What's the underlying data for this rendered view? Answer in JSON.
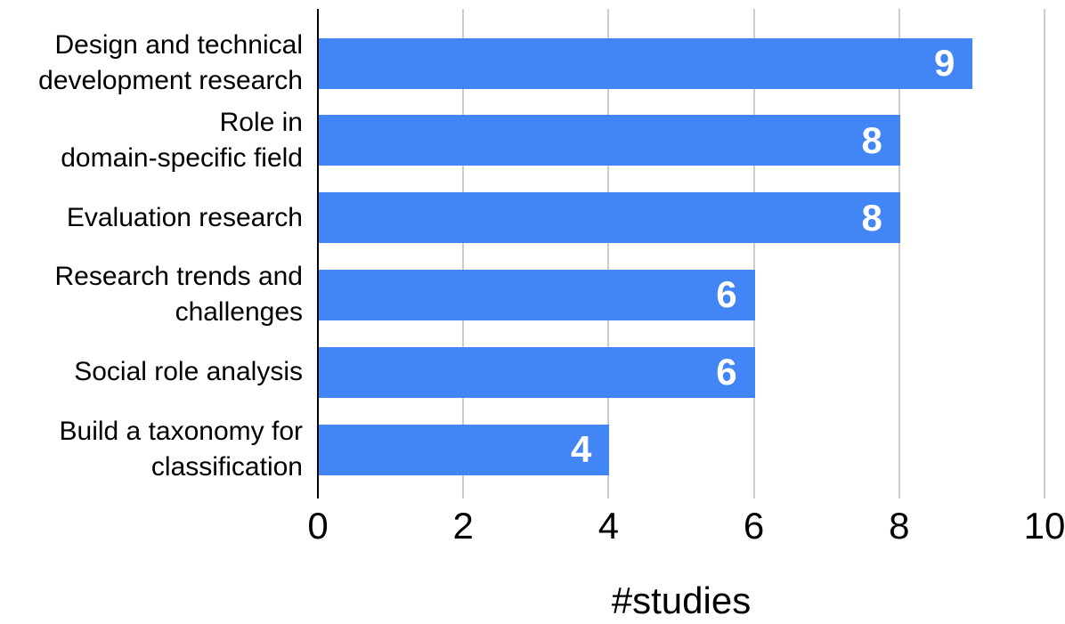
{
  "chart_data": {
    "type": "bar",
    "orientation": "horizontal",
    "title": "",
    "xlabel": "#studies",
    "ylabel": "",
    "categories": [
      "Design and technical development research",
      "Role in domain-specific field",
      "Evaluation research",
      "Research trends and challenges",
      "Social role analysis",
      "Build a taxonomy for classification"
    ],
    "category_lines": [
      [
        "Design and technical",
        "development research"
      ],
      [
        "Role in",
        "domain-specific field"
      ],
      [
        "Evaluation research"
      ],
      [
        "Research trends and",
        "challenges"
      ],
      [
        "Social role analysis"
      ],
      [
        "Build a taxonomy for",
        "classification"
      ]
    ],
    "values": [
      9,
      8,
      8,
      6,
      6,
      4
    ],
    "value_labels": [
      "9",
      "8",
      "8",
      "6",
      "6",
      "4"
    ],
    "xlim": [
      0,
      10
    ],
    "x_ticks": [
      0,
      2,
      4,
      6,
      8,
      10
    ],
    "x_tick_labels": [
      "0",
      "2",
      "4",
      "6",
      "8",
      "10"
    ],
    "grid": true,
    "legend": "none",
    "colors": {
      "bar_fill": "#4285f4",
      "value_label": "#ffffff",
      "gridline": "#cccccc",
      "axis_line": "#000000",
      "text": "#000000"
    }
  }
}
